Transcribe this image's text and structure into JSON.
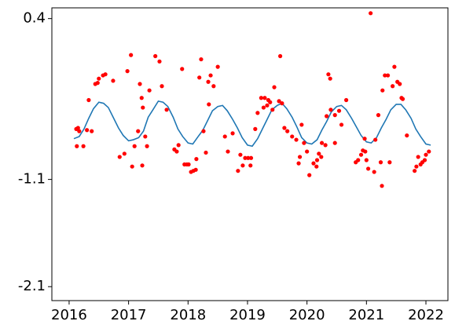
{
  "chart_data": {
    "type": "scatter",
    "xlim": [
      2015.71,
      2022.37
    ],
    "ylim": [
      -2.23,
      0.5
    ],
    "xticks": [
      2016,
      2017,
      2018,
      2019,
      2020,
      2021,
      2022
    ],
    "yticks": [
      0.4,
      -1.1,
      -2.1
    ],
    "series": [
      {
        "type": "line",
        "color": "#1f77b4",
        "x": [
          2016.08,
          2016.17,
          2016.25,
          2016.33,
          2016.41,
          2016.5,
          2016.58,
          2016.66,
          2016.75,
          2016.83,
          2016.91,
          2017.0,
          2017.08,
          2017.17,
          2017.25,
          2017.33,
          2017.41,
          2017.5,
          2017.58,
          2017.66,
          2017.75,
          2017.83,
          2017.91,
          2018.0,
          2018.08,
          2018.17,
          2018.25,
          2018.33,
          2018.41,
          2018.5,
          2018.58,
          2018.66,
          2018.75,
          2018.83,
          2018.91,
          2019.0,
          2019.08,
          2019.17,
          2019.25,
          2019.33,
          2019.41,
          2019.5,
          2019.58,
          2019.66,
          2019.75,
          2019.83,
          2019.91,
          2020.0,
          2020.08,
          2020.17,
          2020.25,
          2020.33,
          2020.41,
          2020.5,
          2020.58,
          2020.66,
          2020.75,
          2020.83,
          2020.91,
          2021.0,
          2021.08,
          2021.17,
          2021.25,
          2021.33,
          2021.41,
          2021.5,
          2021.58,
          2021.66,
          2021.75,
          2021.83,
          2021.91,
          2022.0,
          2022.08
        ],
        "values": [
          -0.72,
          -0.7,
          -0.63,
          -0.53,
          -0.44,
          -0.38,
          -0.39,
          -0.43,
          -0.53,
          -0.62,
          -0.69,
          -0.74,
          -0.73,
          -0.71,
          -0.65,
          -0.52,
          -0.45,
          -0.37,
          -0.38,
          -0.42,
          -0.52,
          -0.63,
          -0.7,
          -0.76,
          -0.77,
          -0.7,
          -0.64,
          -0.55,
          -0.46,
          -0.42,
          -0.41,
          -0.46,
          -0.54,
          -0.62,
          -0.71,
          -0.78,
          -0.79,
          -0.72,
          -0.63,
          -0.54,
          -0.45,
          -0.41,
          -0.39,
          -0.44,
          -0.52,
          -0.61,
          -0.71,
          -0.76,
          -0.77,
          -0.73,
          -0.64,
          -0.56,
          -0.47,
          -0.42,
          -0.41,
          -0.45,
          -0.53,
          -0.61,
          -0.69,
          -0.75,
          -0.76,
          -0.71,
          -0.62,
          -0.54,
          -0.45,
          -0.4,
          -0.4,
          -0.45,
          -0.53,
          -0.63,
          -0.7,
          -0.77,
          -0.78
        ]
      },
      {
        "type": "scatter",
        "color": "#ff0000",
        "x": [
          2016.12,
          2016.15,
          2016.17,
          2016.13,
          2016.24,
          2016.33,
          2016.3,
          2016.38,
          2016.44,
          2016.48,
          2016.5,
          2016.57,
          2016.61,
          2016.74,
          2016.85,
          2016.93,
          2016.98,
          2017.04,
          2017.06,
          2017.1,
          2017.16,
          2017.19,
          2017.22,
          2017.23,
          2017.24,
          2017.28,
          2017.31,
          2017.35,
          2017.45,
          2017.52,
          2017.56,
          2017.64,
          2017.77,
          2017.81,
          2017.84,
          2017.9,
          2017.94,
          2017.98,
          2018.01,
          2018.05,
          2018.09,
          2018.13,
          2018.14,
          2018.19,
          2018.22,
          2018.26,
          2018.3,
          2018.34,
          2018.35,
          2018.38,
          2018.43,
          2018.5,
          2018.62,
          2018.67,
          2018.75,
          2018.84,
          2018.88,
          2018.92,
          2018.96,
          2019.01,
          2019.05,
          2019.06,
          2019.13,
          2019.17,
          2019.23,
          2019.27,
          2019.29,
          2019.33,
          2019.35,
          2019.38,
          2019.42,
          2019.45,
          2019.53,
          2019.55,
          2019.58,
          2019.62,
          2019.67,
          2019.75,
          2019.82,
          2019.86,
          2019.88,
          2019.91,
          2019.95,
          2020.0,
          2020.04,
          2020.11,
          2020.16,
          2020.17,
          2020.2,
          2020.24,
          2020.25,
          2020.31,
          2020.33,
          2020.36,
          2020.39,
          2020.4,
          2020.47,
          2020.47,
          2020.54,
          2020.58,
          2020.66,
          2020.82,
          2020.86,
          2020.91,
          2020.94,
          2020.98,
          2020.97,
          2021.0,
          2021.03,
          2021.07,
          2021.13,
          2021.15,
          2021.2,
          2021.24,
          2021.26,
          2021.27,
          2021.31,
          2021.36,
          2021.39,
          2021.44,
          2021.47,
          2021.52,
          2021.56,
          2021.59,
          2021.61,
          2021.68,
          2021.81,
          2021.84,
          2021.87,
          2021.91,
          2021.94,
          2021.98,
          2022.0,
          2022.05
        ],
        "values": [
          -0.63,
          -0.62,
          -0.65,
          -0.79,
          -0.79,
          -0.36,
          -0.64,
          -0.65,
          -0.21,
          -0.2,
          -0.16,
          -0.13,
          -0.12,
          -0.18,
          -0.89,
          -0.86,
          -0.09,
          0.06,
          -0.98,
          -0.79,
          -0.65,
          -0.21,
          -0.34,
          -0.97,
          -0.43,
          -0.7,
          -0.79,
          -0.27,
          0.05,
          0.0,
          -0.23,
          -0.45,
          -0.82,
          -0.84,
          -0.78,
          -0.07,
          -0.96,
          -0.96,
          -0.96,
          -1.03,
          -1.02,
          -1.01,
          -0.91,
          -0.15,
          0.02,
          -0.65,
          -0.85,
          -0.19,
          -0.4,
          -0.13,
          -0.23,
          -0.05,
          -0.7,
          -0.84,
          -0.67,
          -1.02,
          -0.87,
          -0.97,
          -0.9,
          -0.9,
          -0.97,
          -0.9,
          -0.63,
          -0.48,
          -0.34,
          -0.43,
          -0.34,
          -0.41,
          -0.36,
          -0.38,
          -0.45,
          -0.24,
          -0.37,
          0.05,
          -0.39,
          -0.62,
          -0.65,
          -0.7,
          -0.73,
          -0.95,
          -0.89,
          -0.59,
          -0.76,
          -0.84,
          -1.06,
          -0.95,
          -0.98,
          -0.92,
          -0.86,
          -0.89,
          -0.76,
          -0.78,
          -0.51,
          -0.12,
          -0.16,
          -0.45,
          -0.5,
          -0.76,
          -0.46,
          -0.59,
          -0.36,
          -0.94,
          -0.92,
          -0.87,
          -0.83,
          -0.84,
          -0.72,
          -0.92,
          -1.0,
          0.45,
          -1.03,
          -0.73,
          -0.5,
          -0.94,
          -1.16,
          -0.27,
          -0.13,
          -0.13,
          -0.94,
          -0.23,
          -0.05,
          -0.19,
          -0.21,
          -0.34,
          -0.35,
          -0.69,
          -1.02,
          -0.98,
          -0.89,
          -0.96,
          -0.94,
          -0.92,
          -0.87,
          -0.84
        ]
      }
    ]
  }
}
